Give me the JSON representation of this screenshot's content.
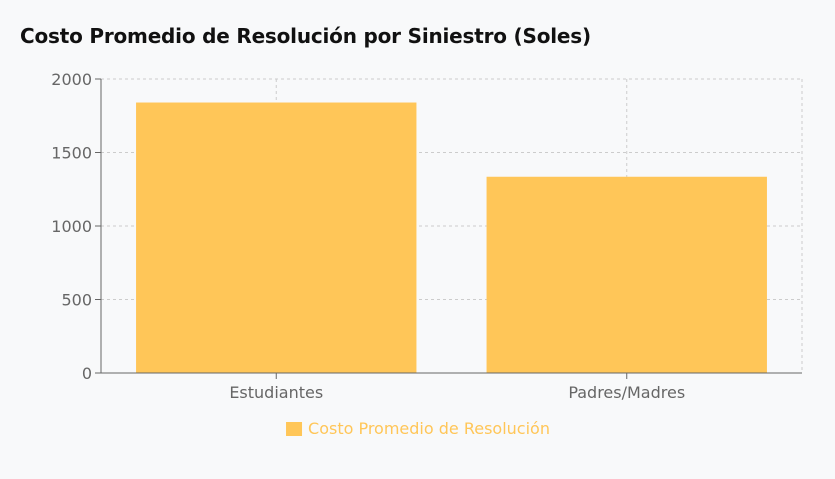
{
  "title": "Costo Promedio de Resolución por Siniestro (Soles)",
  "colors": {
    "bar": "#ffc658",
    "grid": "#cccccc",
    "axis": "#666666",
    "background": "#f8f9fa"
  },
  "chart_data": {
    "type": "bar",
    "categories": [
      "Estudiantes",
      "Padres/Madres"
    ],
    "series": [
      {
        "name": "Costo Promedio de Resolución",
        "values": [
          1840,
          1335
        ]
      }
    ],
    "ylim": [
      0,
      2000
    ],
    "yticks": [
      0,
      500,
      1000,
      1500,
      2000
    ],
    "grid": true,
    "legend": "bottom-center"
  }
}
